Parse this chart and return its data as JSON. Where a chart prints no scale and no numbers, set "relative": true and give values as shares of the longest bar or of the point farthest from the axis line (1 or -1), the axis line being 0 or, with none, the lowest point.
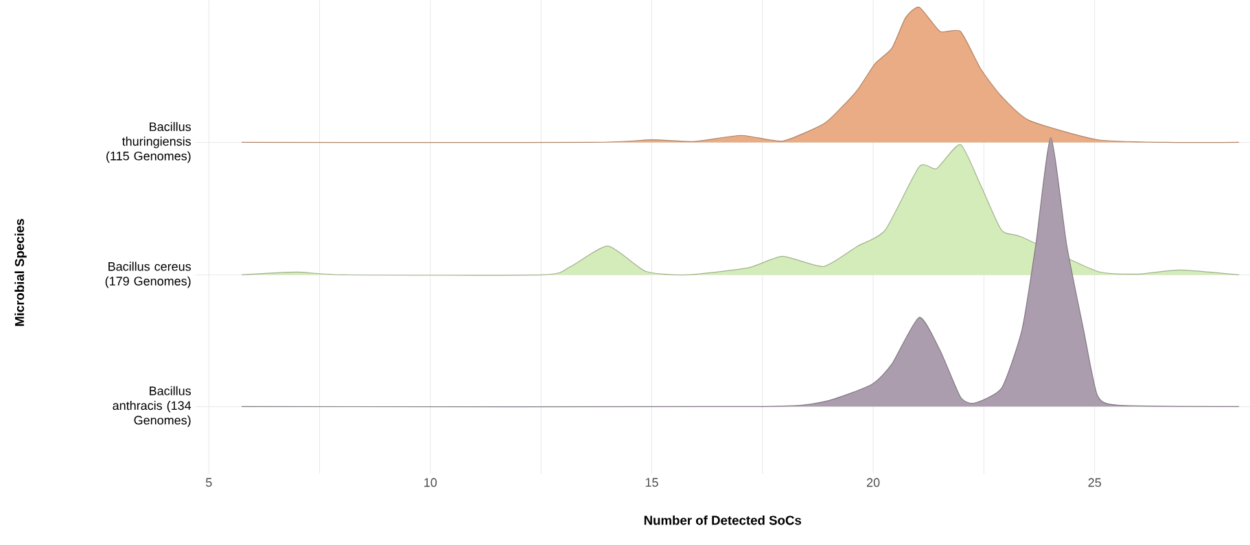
{
  "chart_data": [
    {
      "type": "area",
      "relative": true,
      "ylabel": "Bacillus thuringiensis (115 Genomes)",
      "xlabel": "Number of Detected SoCs",
      "annotations": [
        "Microbial Species"
      ],
      "xlim": [
        4.7,
        28.5
      ],
      "xticks": [
        5,
        10,
        15,
        20,
        25
      ],
      "grid": "x",
      "color": "#e9ac84",
      "x": [
        5.74,
        13.62,
        15.0,
        15.94,
        17.02,
        17.95,
        18.88,
        19.27,
        19.65,
        20.04,
        20.42,
        20.73,
        21.04,
        21.51,
        21.97,
        22.43,
        22.9,
        23.52,
        24.29,
        25.06,
        26.61,
        28.26
      ],
      "values": [
        0,
        0,
        0.02,
        0.006,
        0.052,
        0.01,
        0.137,
        0.254,
        0.39,
        0.582,
        0.696,
        0.922,
        1,
        0.821,
        0.821,
        0.543,
        0.34,
        0.163,
        null,
        0.02,
        0,
        0
      ]
    },
    {
      "type": "area",
      "relative": true,
      "ylabel": "Bacillus cereus (179 Genomes)",
      "xlim": [
        4.7,
        28.5
      ],
      "xticks": [
        5,
        10,
        15,
        20,
        25
      ],
      "tick_labels": false,
      "color": "#d4ecb9",
      "x": [
        5.74,
        6.98,
        8.06,
        12.54,
        13.16,
        14.01,
        14.86,
        15.79,
        17.18,
        17.95,
        18.88,
        19.65,
        20.27,
        21.04,
        21.43,
        21.97,
        22.43,
        22.9,
        23.36,
        23.98,
        24.44,
        25.06,
        25.99,
        26.92,
        28.26
      ],
      "values": [
        0,
        0.021,
        0,
        0,
        0.062,
        0.221,
        0.027,
        0,
        0.054,
        0.142,
        0.064,
        0.221,
        0.342,
        0.831,
        0.814,
        1,
        0.685,
        0.342,
        0.289,
        null,
        null,
        0.027,
        0.006,
        0.037,
        0
      ]
    },
    {
      "type": "area",
      "relative": true,
      "ylabel": "Bacillus anthracis (134 Genomes)",
      "xlim": [
        4.7,
        28.5
      ],
      "xticks": [
        5,
        10,
        15,
        20,
        25
      ],
      "tick_labels": false,
      "color": "#ab9dad",
      "x": [
        5.74,
        17.33,
        18.88,
        19.96,
        20.42,
        21.04,
        21.51,
        21.97,
        22.28,
        22.9,
        23.36,
        23.67,
        24.01,
        24.37,
        24.75,
        25.06,
        25.53,
        28.26
      ],
      "values": [
        0,
        0,
        0.018,
        0.082,
        0.158,
        0.332,
        0.209,
        0.036,
        0.013,
        0.069,
        0.286,
        0.6,
        1.0,
        0.6,
        0.286,
        0.043,
        0.005,
        0
      ]
    }
  ]
}
